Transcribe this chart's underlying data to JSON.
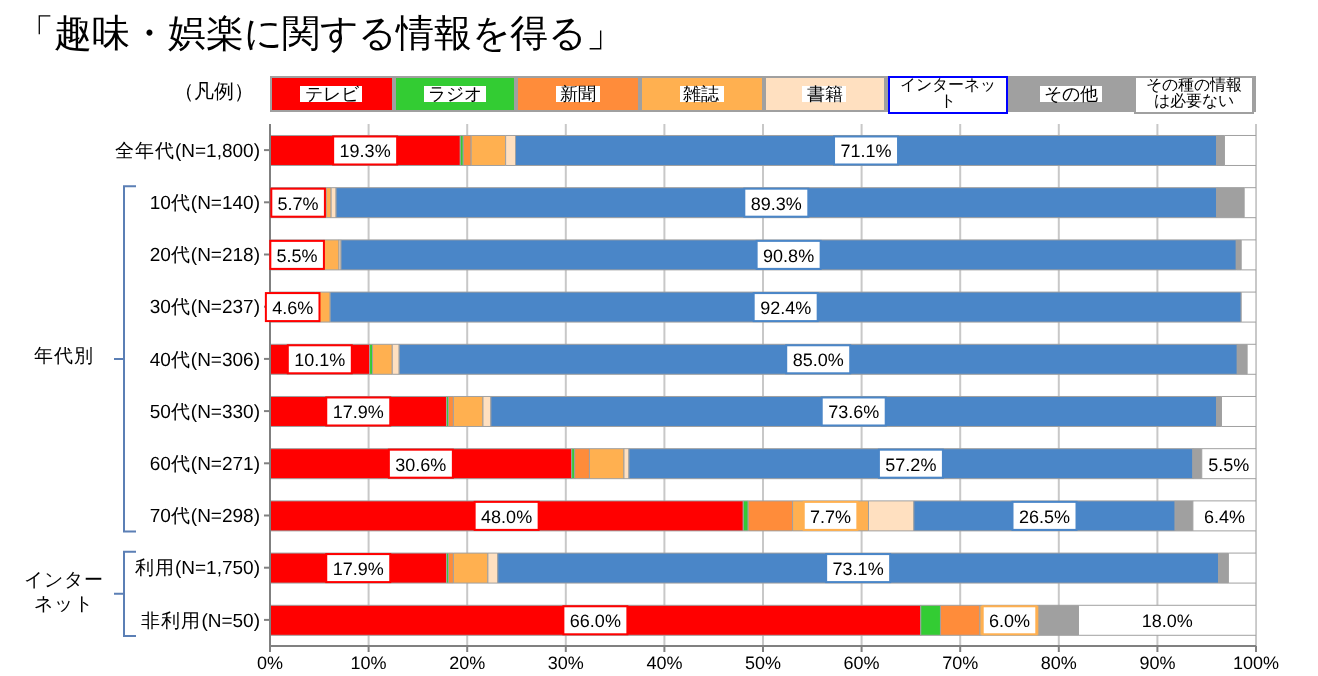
{
  "chart_data": {
    "type": "bar",
    "orientation": "horizontal",
    "stacked": true,
    "title": "「趣味・娯楽に関する情報を得る」",
    "legend_title": "（凡例）",
    "legend": "top",
    "grid": "x",
    "categories": [
      "全年代(N=1,800)",
      "10代(N=140)",
      "20代(N=218)",
      "30代(N=237)",
      "40代(N=306)",
      "50代(N=330)",
      "60代(N=271)",
      "70代(N=298)",
      "利用(N=1,750)",
      "非利用(N=50)"
    ],
    "xlim": [
      0,
      100
    ],
    "xticks": [
      {
        "value": 0,
        "label": "0%"
      },
      {
        "value": 10,
        "label": "10%"
      },
      {
        "value": 20,
        "label": "20%"
      },
      {
        "value": 30,
        "label": "30%"
      },
      {
        "value": 40,
        "label": "40%"
      },
      {
        "value": 50,
        "label": "50%"
      },
      {
        "value": 60,
        "label": "60%"
      },
      {
        "value": 70,
        "label": "70%"
      },
      {
        "value": 80,
        "label": "80%"
      },
      {
        "value": 90,
        "label": "90%"
      },
      {
        "value": 100,
        "label": "100%"
      }
    ],
    "annotations": [
      "年代別",
      "インターネット"
    ],
    "series": [
      {
        "name": "テレビ",
        "color": "#ff0000",
        "values": [
          19.3,
          5.7,
          5.5,
          4.6,
          10.1,
          17.9,
          30.6,
          48.0,
          17.9,
          66.0
        ],
        "value_labels": [
          "19.3%",
          "5.7%",
          "5.5%",
          "4.6%",
          "10.1%",
          "17.9%",
          "30.6%",
          "48.0%",
          "17.9%",
          "66.0%"
        ]
      },
      {
        "name": "ラジオ",
        "color": "#33cc33",
        "values": [
          0.3,
          0,
          0,
          0,
          0.3,
          0.2,
          0.3,
          0.5,
          0.2,
          2.0
        ]
      },
      {
        "name": "新聞",
        "color": "#ff8c3a",
        "values": [
          0.8,
          0,
          0,
          0,
          0,
          0.5,
          1.5,
          4.5,
          0.5,
          4.0
        ]
      },
      {
        "name": "雑誌",
        "color": "#ffb050",
        "values": [
          3.5,
          0.5,
          1.5,
          1.5,
          2.0,
          3.0,
          3.5,
          7.7,
          3.5,
          6.0
        ],
        "value_labels": [
          null,
          null,
          null,
          null,
          null,
          null,
          null,
          "7.7%",
          null,
          "6.0%"
        ]
      },
      {
        "name": "書籍",
        "color": "#ffe0c0",
        "values": [
          1.0,
          0.5,
          0.2,
          0,
          0.7,
          0.8,
          0.5,
          4.6,
          1.0,
          0
        ]
      },
      {
        "name": "インターネット",
        "color": "#4a86c8",
        "values": [
          71.1,
          89.3,
          90.8,
          92.4,
          85.0,
          73.6,
          57.2,
          26.5,
          73.1,
          0
        ],
        "value_labels": [
          "71.1%",
          "89.3%",
          "90.8%",
          "92.4%",
          "85.0%",
          "73.6%",
          "57.2%",
          "26.5%",
          "73.1%",
          null
        ]
      },
      {
        "name": "その他",
        "color": "#a0a0a0",
        "values": [
          0.8,
          2.8,
          0.5,
          0,
          1.0,
          0.5,
          0.9,
          1.8,
          1.0,
          4.0
        ]
      },
      {
        "name": "その種の情報は必要ない",
        "color": "#ffffff",
        "values": [
          3.2,
          1.2,
          1.5,
          1.5,
          0.9,
          3.5,
          5.5,
          6.4,
          2.8,
          18.0
        ],
        "value_labels": [
          null,
          null,
          null,
          null,
          null,
          null,
          "5.5%",
          "6.4%",
          null,
          "18.0%"
        ]
      }
    ]
  }
}
